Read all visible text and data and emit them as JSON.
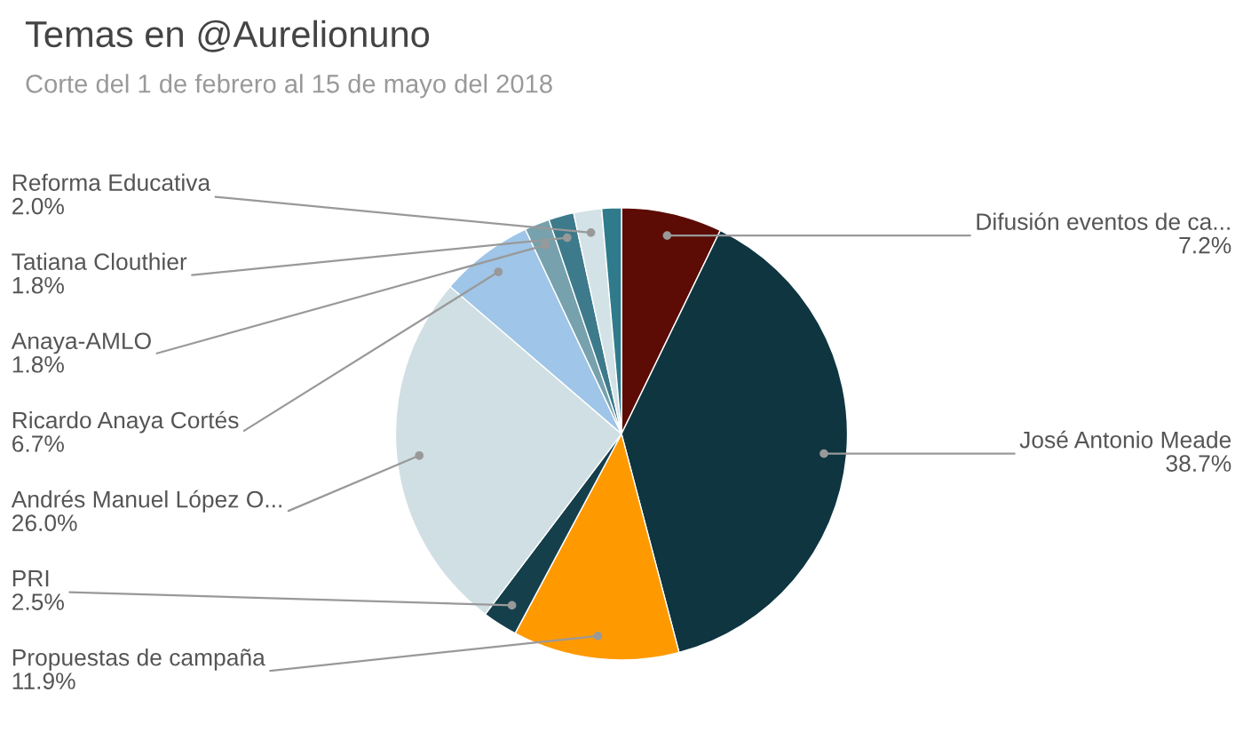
{
  "chart_data": {
    "type": "pie",
    "title": "Temas en @Aurelionuno",
    "subtitle": "Corte del 1 de febrero al 15 de mayo del 2018",
    "categories": [
      "Difusión eventos de ca...",
      "José Antonio Meade",
      "Propuestas de campaña",
      "PRI",
      "Andrés Manuel López O...",
      "Ricardo Anaya Cortés",
      "Anaya-AMLO",
      "Tatiana Clouthier",
      "Reforma Educativa",
      null
    ],
    "values": [
      7.2,
      38.7,
      11.9,
      2.5,
      26.0,
      6.7,
      1.8,
      1.8,
      2.0,
      1.4
    ],
    "value_labels": [
      "7.2%",
      "38.7%",
      "11.9%",
      "2.5%",
      "26.0%",
      "6.7%",
      "1.8%",
      "1.8%",
      "2.0%",
      null
    ],
    "colors": [
      "#5c0c04",
      "#0e3540",
      "#ff9900",
      "#163f4c",
      "#d0dfe3",
      "#9fc5e8",
      "#77a1ad",
      "#3d7a8b",
      "#d3e2e6",
      "#2f7b8c"
    ],
    "legend": false
  }
}
